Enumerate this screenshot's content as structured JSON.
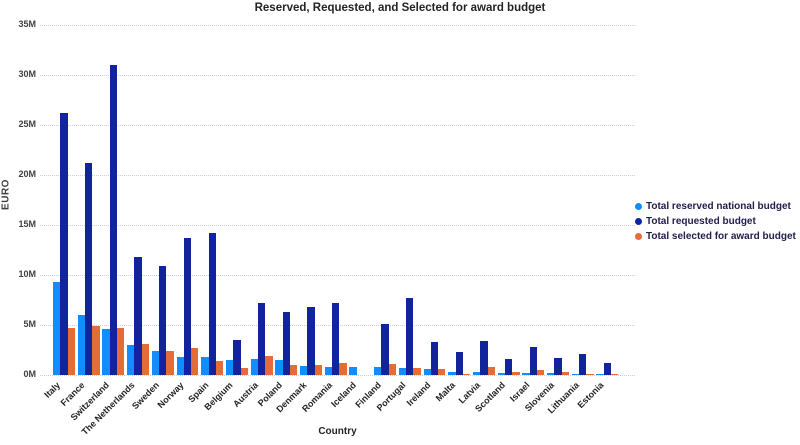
{
  "chart_data": {
    "type": "bar",
    "title": "Reserved, Requested, and Selected for award budget",
    "xlabel": "Country",
    "ylabel": "EURO",
    "ylim_euro": [
      0,
      35000000
    ],
    "ytick_labels": [
      "0M",
      "5M",
      "10M",
      "15M",
      "20M",
      "25M",
      "30M",
      "35M"
    ],
    "grid": "horizontal-dotted",
    "legend_position": "right",
    "categories": [
      "Italy",
      "France",
      "Switzerland",
      "The Netherlands",
      "Sweden",
      "Norway",
      "Spain",
      "Belgium",
      "Austria",
      "Poland",
      "Denmark",
      "Romania",
      "Iceland",
      "Finland",
      "Portugal",
      "Ireland",
      "Malta",
      "Latvia",
      "Scotland",
      "Israel",
      "Slovenia",
      "Lithuania",
      "Estonia"
    ],
    "series": [
      {
        "name": "Total reserved national budget",
        "color": "#118DFF",
        "values_millions": [
          9.3,
          6.0,
          4.6,
          3.0,
          2.4,
          1.8,
          1.8,
          1.5,
          1.6,
          1.5,
          0.9,
          0.8,
          0.8,
          0.8,
          0.7,
          0.65,
          0.35,
          0.35,
          0.25,
          0.25,
          0.2,
          0.15,
          0.1
        ]
      },
      {
        "name": "Total requested budget",
        "color": "#12239E",
        "values_millions": [
          26.2,
          21.2,
          31.0,
          11.8,
          10.9,
          13.7,
          14.2,
          3.5,
          7.2,
          6.3,
          6.8,
          7.2,
          0,
          5.1,
          7.7,
          3.3,
          2.3,
          3.4,
          1.6,
          2.8,
          1.7,
          2.1,
          1.2
        ]
      },
      {
        "name": "Total selected for award budget",
        "color": "#E66C37",
        "values_millions": [
          4.7,
          4.9,
          4.7,
          3.1,
          2.4,
          2.7,
          1.4,
          0.7,
          1.9,
          1.0,
          1.0,
          1.2,
          0,
          1.1,
          0.75,
          0.65,
          0.15,
          0.8,
          0.3,
          0.55,
          0.35,
          0.1,
          0.15
        ]
      }
    ]
  }
}
